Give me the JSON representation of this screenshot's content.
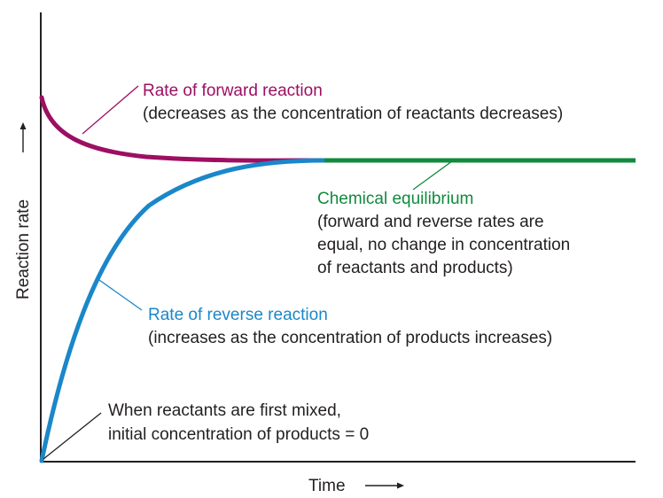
{
  "axes": {
    "x_label": "Time",
    "y_label": "Reaction rate"
  },
  "curves": {
    "forward": {
      "color": "#9c0f62"
    },
    "reverse": {
      "color": "#1a87c9"
    },
    "equilibrium": {
      "color": "#118a3e"
    }
  },
  "annotations": {
    "forward": {
      "title": "Rate of forward reaction",
      "detail": "(decreases as the concentration of reactants decreases)"
    },
    "equilibrium": {
      "title": "Chemical equilibrium",
      "line1": "(forward and reverse rates are",
      "line2": "equal, no change in concentration",
      "line3": "of reactants and products)"
    },
    "reverse": {
      "title": "Rate of reverse reaction",
      "detail": "(increases as the concentration of products increases)"
    },
    "start": {
      "line1": "When reactants are first mixed,",
      "line2": "initial concentration of products = 0"
    }
  },
  "colors": {
    "axis": "#231f20",
    "text": "#231f20"
  }
}
